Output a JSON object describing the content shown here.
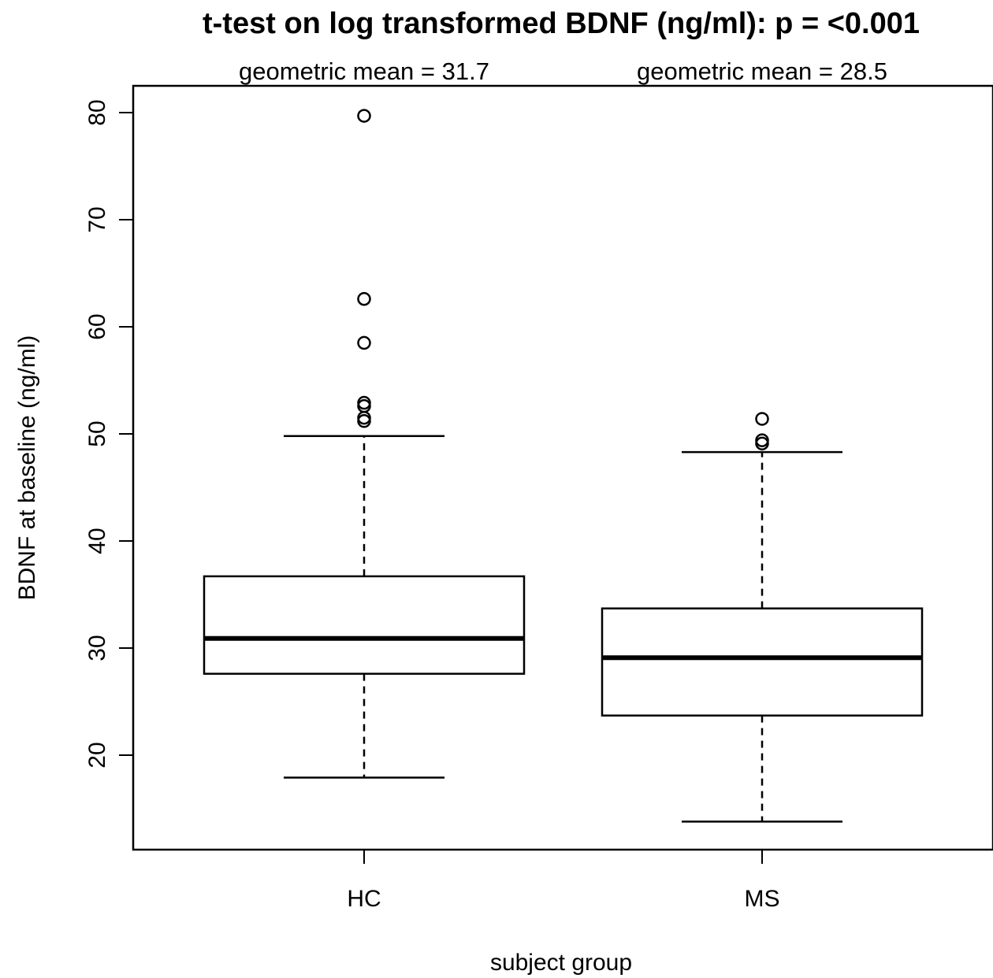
{
  "chart_data": {
    "type": "box",
    "title": "t-test on log transformed BDNF (ng/ml): p =  <0.001",
    "xlabel": "subject group",
    "ylabel": "BDNF at baseline (ng/ml)",
    "ylim": [
      12,
      81
    ],
    "yticks": [
      20,
      30,
      40,
      50,
      60,
      70,
      80
    ],
    "categories": [
      "HC",
      "MS"
    ],
    "annotations": [
      "geometric mean =  31.7",
      "geometric mean =  28.5"
    ],
    "boxes": [
      {
        "name": "HC",
        "whisker_low": 17.9,
        "q1": 27.6,
        "median": 30.9,
        "q3": 36.7,
        "whisker_high": 49.8,
        "outliers": [
          51.2,
          51.5,
          52.6,
          52.9,
          58.5,
          62.6,
          79.7
        ]
      },
      {
        "name": "MS",
        "whisker_low": 13.8,
        "q1": 23.7,
        "median": 29.1,
        "q3": 33.7,
        "whisker_high": 48.3,
        "outliers": [
          49.1,
          49.4,
          51.4
        ]
      }
    ],
    "grid": false
  }
}
